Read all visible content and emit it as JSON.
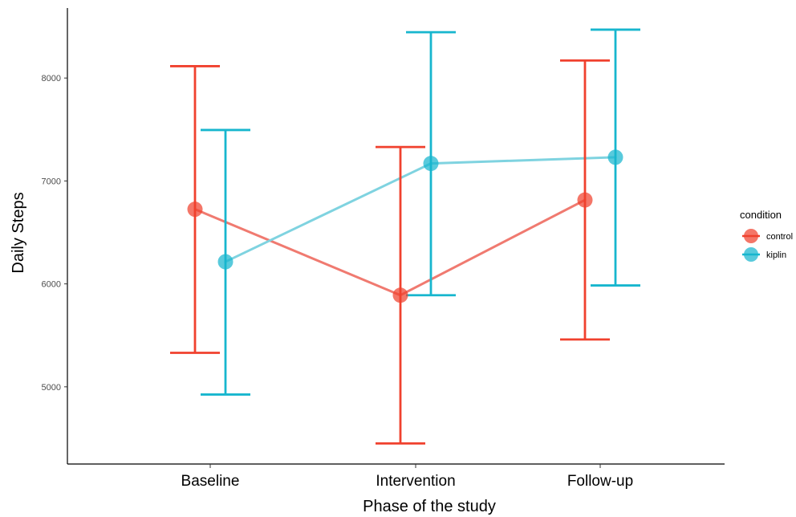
{
  "chart_data": {
    "type": "line",
    "title": "",
    "xlabel": "Phase of the study",
    "ylabel": "Daily Steps",
    "categories": [
      "Baseline",
      "Intervention",
      "Follow-up"
    ],
    "ylim": [
      4250,
      8680
    ],
    "yticks": [
      5000,
      6000,
      7000,
      8000
    ],
    "grid": false,
    "legend": {
      "title": "condition",
      "position": "right"
    },
    "series": [
      {
        "name": "control",
        "color": "#F0412E",
        "line_color": "#F07A70",
        "values": [
          6725,
          5890,
          6815
        ],
        "lower": [
          5330,
          4450,
          5460
        ],
        "upper": [
          8115,
          7330,
          8170
        ]
      },
      {
        "name": "kiplin",
        "color": "#17B6CE",
        "line_color": "#7FD3E0",
        "values": [
          6215,
          7170,
          7230
        ],
        "lower": [
          4925,
          5890,
          5985
        ],
        "upper": [
          7495,
          8445,
          8470
        ]
      }
    ]
  }
}
